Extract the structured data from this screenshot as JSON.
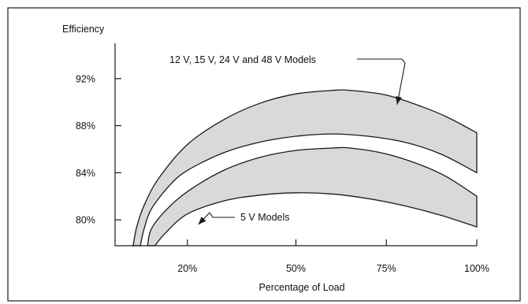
{
  "chart_data": {
    "type": "area",
    "title": "",
    "ylabel": "Efficiency",
    "xlabel": "Percentage of Load",
    "xlim": [
      0,
      100
    ],
    "ylim": [
      77.8,
      95
    ],
    "x_ticks": [
      {
        "value": 20,
        "label": "20%"
      },
      {
        "value": 50,
        "label": "50%"
      },
      {
        "value": 75,
        "label": "75%"
      },
      {
        "value": 100,
        "label": "100%"
      }
    ],
    "y_ticks": [
      {
        "value": 80,
        "label": "80%"
      },
      {
        "value": 84,
        "label": "84%"
      },
      {
        "value": 88,
        "label": "88%"
      },
      {
        "value": 92,
        "label": "92%"
      }
    ],
    "grid": false,
    "series": [
      {
        "name": "12 V, 15 V, 24 V and 48 V Models",
        "upper": [
          [
            5,
            77.8
          ],
          [
            6,
            79.4
          ],
          [
            8,
            81.2
          ],
          [
            12,
            83.5
          ],
          [
            20,
            86.4
          ],
          [
            30,
            88.5
          ],
          [
            40,
            89.9
          ],
          [
            50,
            90.7
          ],
          [
            60,
            91.0
          ],
          [
            65,
            91.0
          ],
          [
            75,
            90.6
          ],
          [
            85,
            89.6
          ],
          [
            92,
            88.7
          ],
          [
            100,
            87.4
          ]
        ],
        "lower": [
          [
            7,
            77.8
          ],
          [
            8,
            79.2
          ],
          [
            10,
            80.9
          ],
          [
            15,
            82.9
          ],
          [
            20,
            84.2
          ],
          [
            30,
            85.7
          ],
          [
            40,
            86.6
          ],
          [
            50,
            87.1
          ],
          [
            60,
            87.3
          ],
          [
            70,
            87.1
          ],
          [
            80,
            86.6
          ],
          [
            90,
            85.6
          ],
          [
            100,
            84.0
          ]
        ],
        "fill": "#d9d9d9"
      },
      {
        "name": "5 V Models",
        "upper": [
          [
            9,
            77.8
          ],
          [
            10,
            79.2
          ],
          [
            14,
            80.8
          ],
          [
            20,
            82.4
          ],
          [
            30,
            84.2
          ],
          [
            40,
            85.3
          ],
          [
            50,
            85.9
          ],
          [
            60,
            86.1
          ],
          [
            65,
            86.1
          ],
          [
            75,
            85.6
          ],
          [
            85,
            84.6
          ],
          [
            92,
            83.6
          ],
          [
            100,
            82.0
          ]
        ],
        "lower": [
          [
            11,
            77.8
          ],
          [
            14,
            78.9
          ],
          [
            20,
            80.5
          ],
          [
            30,
            81.6
          ],
          [
            40,
            82.1
          ],
          [
            50,
            82.3
          ],
          [
            60,
            82.2
          ],
          [
            70,
            81.8
          ],
          [
            80,
            81.2
          ],
          [
            90,
            80.4
          ],
          [
            100,
            79.4
          ]
        ],
        "fill": "#d9d9d9"
      }
    ],
    "annotations": [
      {
        "text": "12 V, 15 V, 24 V and 48 V Models",
        "target": [
          78,
          89.8
        ]
      },
      {
        "text": "5 V Models",
        "target": [
          23,
          79.6
        ]
      }
    ]
  }
}
